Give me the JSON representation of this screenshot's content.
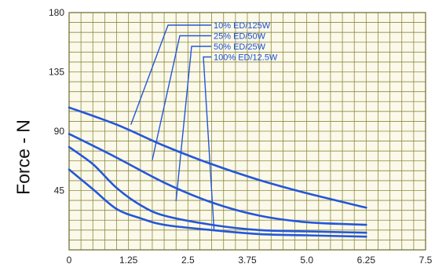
{
  "chart_data": {
    "type": "line",
    "title": "",
    "xlabel": "",
    "ylabel": "Force - N",
    "xlim": [
      0,
      7.5
    ],
    "ylim": [
      0,
      180
    ],
    "x_ticks": [
      "0",
      "1.25",
      "2.5",
      "3.75",
      "5.0",
      "6.25",
      "7.5"
    ],
    "y_ticks": [
      "45",
      "90",
      "135",
      "180"
    ],
    "grid": true,
    "legend_placement": "top-right",
    "colors": {
      "series": "#2457d8",
      "grid": "#8f8a3e",
      "background": "#fbf9ea"
    },
    "series": [
      {
        "name": "10% ED/125W",
        "x": [
          0,
          1,
          2,
          3,
          4,
          5,
          6.25
        ],
        "y": [
          108,
          95,
          79,
          65,
          53,
          43,
          32
        ]
      },
      {
        "name": "25% ED/50W",
        "x": [
          0,
          1,
          2,
          3,
          4,
          5,
          6.25
        ],
        "y": [
          88,
          70,
          51,
          36,
          26,
          21,
          19
        ]
      },
      {
        "name": "50% ED/25W",
        "x": [
          0,
          0.5,
          1,
          1.5,
          2,
          3,
          4,
          5,
          6.25
        ],
        "y": [
          78,
          65,
          47,
          34,
          26,
          19,
          15,
          14,
          13
        ]
      },
      {
        "name": "100% ED/12.5W",
        "x": [
          0,
          0.5,
          1,
          1.5,
          2,
          3,
          4,
          5,
          6.25
        ],
        "y": [
          61,
          46,
          31,
          24,
          19,
          15,
          12,
          11,
          10
        ]
      }
    ],
    "legend_leaders": [
      {
        "series": "10% ED/125W",
        "from": [
          1.3,
          95
        ]
      },
      {
        "series": "25% ED/50W",
        "from": [
          1.75,
          68
        ]
      },
      {
        "series": "50% ED/25W",
        "from": [
          2.25,
          37
        ]
      },
      {
        "series": "100% ED/12.5W",
        "from": [
          3.05,
          15
        ]
      }
    ]
  }
}
